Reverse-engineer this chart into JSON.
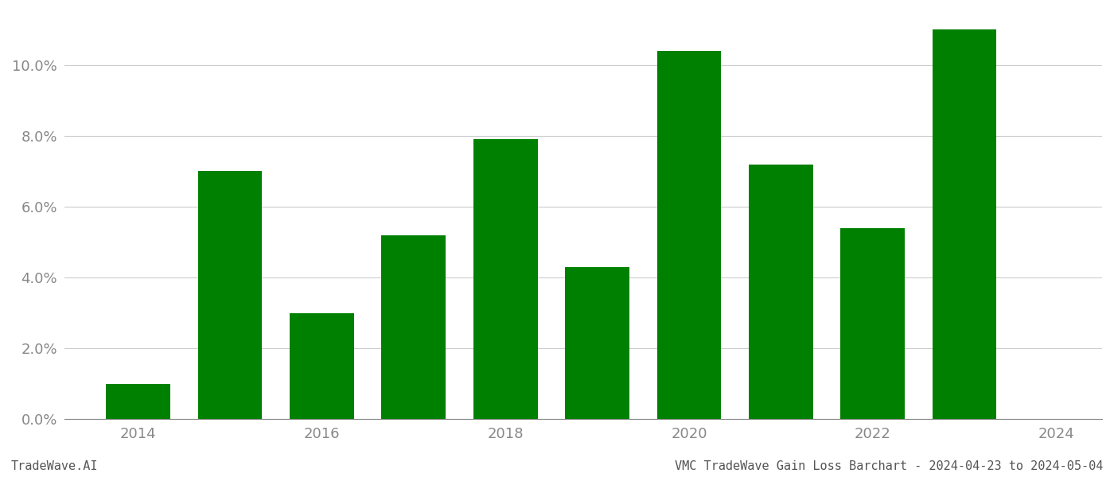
{
  "years": [
    2014,
    2015,
    2016,
    2017,
    2018,
    2019,
    2020,
    2021,
    2022,
    2023
  ],
  "values": [
    0.01,
    0.07,
    0.03,
    0.052,
    0.079,
    0.043,
    0.104,
    0.072,
    0.054,
    0.11
  ],
  "bar_color": "#008000",
  "background_color": "#ffffff",
  "ylim": [
    0,
    0.115
  ],
  "yticks": [
    0.0,
    0.02,
    0.04,
    0.06,
    0.08,
    0.1
  ],
  "xtick_years": [
    2014,
    2016,
    2018,
    2020,
    2022,
    2024
  ],
  "xlabel": "",
  "ylabel": "",
  "footer_left": "TradeWave.AI",
  "footer_right": "VMC TradeWave Gain Loss Barchart - 2024-04-23 to 2024-05-04",
  "grid_color": "#cccccc",
  "tick_label_color": "#888888",
  "footer_font_size": 11,
  "bar_width": 0.7
}
